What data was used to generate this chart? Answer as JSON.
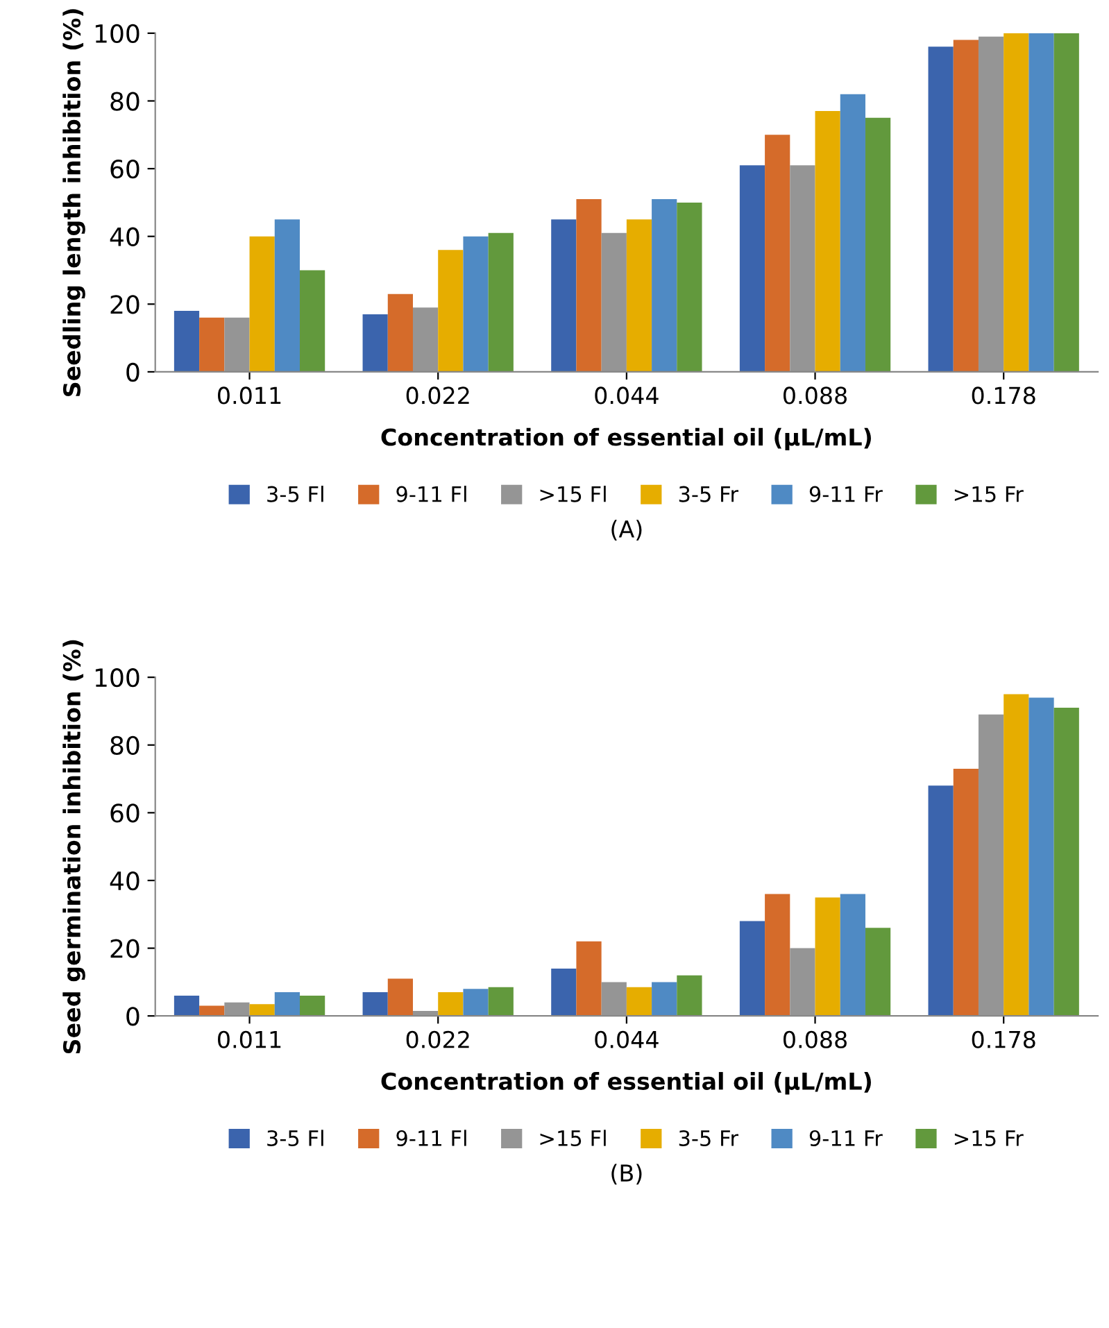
{
  "chart_data": [
    {
      "type": "bar",
      "xlabel": "Concentration of essential oil (µL/mL)",
      "ylabel": "Seedling length inhibition (%)",
      "categories": [
        "0.011",
        "0.022",
        "0.044",
        "0.088",
        "0.178"
      ],
      "ylim": [
        0,
        100
      ],
      "yticks": [
        0,
        20,
        40,
        60,
        80,
        100
      ],
      "legend": "bottom",
      "grid": false,
      "annotations": [
        "(A)"
      ],
      "series": [
        {
          "name": "3-5 Fl",
          "color": "#3b64ad",
          "values": [
            18,
            17,
            45,
            61,
            96
          ]
        },
        {
          "name": "9-11 Fl",
          "color": "#d56b2a",
          "values": [
            16,
            23,
            51,
            70,
            98
          ]
        },
        {
          "name": ">15 Fl",
          "color": "#959595",
          "values": [
            16,
            19,
            41,
            61,
            99
          ]
        },
        {
          "name": "3-5 Fr",
          "color": "#e6ad00",
          "values": [
            40,
            36,
            45,
            77,
            100
          ]
        },
        {
          "name": "9-11 Fr",
          "color": "#4f8ac4",
          "values": [
            45,
            40,
            51,
            82,
            100
          ]
        },
        {
          "name": ">15 Fr",
          "color": "#62993d",
          "values": [
            30,
            41,
            50,
            75,
            100
          ]
        }
      ]
    },
    {
      "type": "bar",
      "xlabel": "Concentration of essential oil (µL/mL)",
      "ylabel": "Seed germination inhibition (%)",
      "categories": [
        "0.011",
        "0.022",
        "0.044",
        "0.088",
        "0.178"
      ],
      "ylim": [
        0,
        100
      ],
      "yticks": [
        0,
        20,
        40,
        60,
        80,
        100
      ],
      "legend": "bottom",
      "grid": false,
      "annotations": [
        "(B)"
      ],
      "series": [
        {
          "name": "3-5 Fl",
          "color": "#3b64ad",
          "values": [
            6,
            7,
            14,
            28,
            68
          ]
        },
        {
          "name": "9-11 Fl",
          "color": "#d56b2a",
          "values": [
            3,
            11,
            22,
            36,
            73
          ]
        },
        {
          "name": ">15 Fl",
          "color": "#959595",
          "values": [
            4,
            1.5,
            10,
            20,
            89
          ]
        },
        {
          "name": "3-5 Fr",
          "color": "#e6ad00",
          "values": [
            3.5,
            7,
            8.5,
            35,
            95
          ]
        },
        {
          "name": "9-11 Fr",
          "color": "#4f8ac4",
          "values": [
            7,
            8,
            10,
            36,
            94
          ]
        },
        {
          "name": ">15 Fr",
          "color": "#62993d",
          "values": [
            6,
            8.5,
            12,
            26,
            91
          ]
        }
      ]
    }
  ]
}
